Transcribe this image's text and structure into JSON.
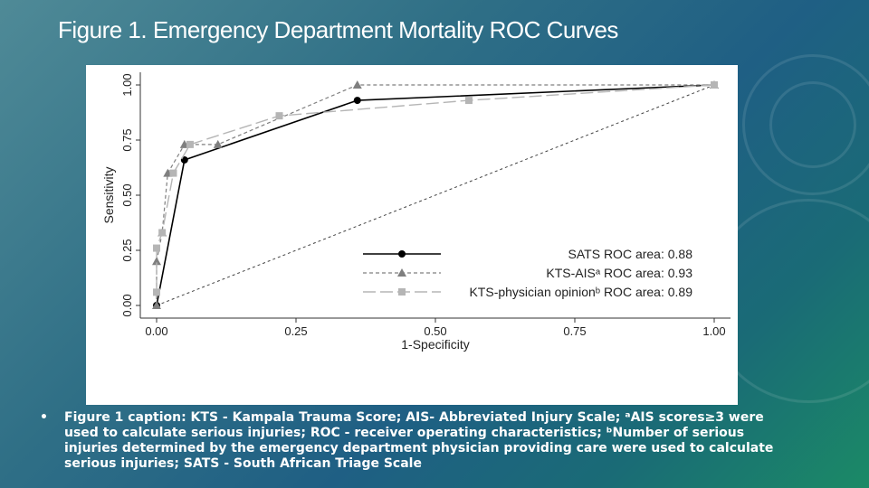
{
  "slide": {
    "title": "Figure 1. Emergency Department Mortality ROC Curves",
    "bullet": "•",
    "caption": "Figure 1 caption: KTS - Kampala Trauma Score; AIS- Abbreviated Injury Scale; ᵃAIS scores≥3 were used to calculate serious injuries; ROC - receiver operating characteristics; ᵇNumber of serious injuries determined by the emergency department physician providing care were used to calculate serious injuries; SATS - South African Triage Scale"
  },
  "colors": {
    "background_start": "#4f8a97",
    "background_end": "#1b8a66",
    "sats": "#000000",
    "kts_ais": "#7f7f7f",
    "kts_physician": "#b5b5b5"
  },
  "chart_data": {
    "type": "line",
    "xlabel": "1-Specificity",
    "ylabel": "Sensitivity",
    "xlim": [
      0,
      1
    ],
    "ylim": [
      0,
      1
    ],
    "xticks": [
      "0.00",
      "0.25",
      "0.50",
      "0.75",
      "1.00"
    ],
    "yticks": [
      "0.00",
      "0.25",
      "0.50",
      "0.75",
      "1.00"
    ],
    "grid": false,
    "legend_position": "bottom-right",
    "series": [
      {
        "name": "SATS ROC area: 0.88",
        "style": "solid",
        "marker": "circle",
        "points": [
          [
            0,
            0
          ],
          [
            0.05,
            0.66
          ],
          [
            0.36,
            0.93
          ],
          [
            1,
            1
          ]
        ]
      },
      {
        "name": "KTS-AISᵃ ROC area: 0.93",
        "style": "dashed",
        "marker": "triangle",
        "points": [
          [
            0,
            0
          ],
          [
            0,
            0.2
          ],
          [
            0.01,
            0.33
          ],
          [
            0.02,
            0.6
          ],
          [
            0.05,
            0.73
          ],
          [
            0.11,
            0.73
          ],
          [
            0.36,
            1
          ],
          [
            1,
            1
          ]
        ]
      },
      {
        "name": "KTS-physician opinionᵇ ROC area: 0.89",
        "style": "longdash",
        "marker": "square",
        "points": [
          [
            0,
            0.06
          ],
          [
            0,
            0.26
          ],
          [
            0.01,
            0.33
          ],
          [
            0.03,
            0.6
          ],
          [
            0.06,
            0.73
          ],
          [
            0.22,
            0.86
          ],
          [
            0.56,
            0.93
          ],
          [
            1,
            1
          ]
        ]
      },
      {
        "name": "",
        "style": "reference",
        "marker": "none",
        "points": [
          [
            0,
            0
          ],
          [
            1,
            1
          ]
        ]
      }
    ]
  }
}
